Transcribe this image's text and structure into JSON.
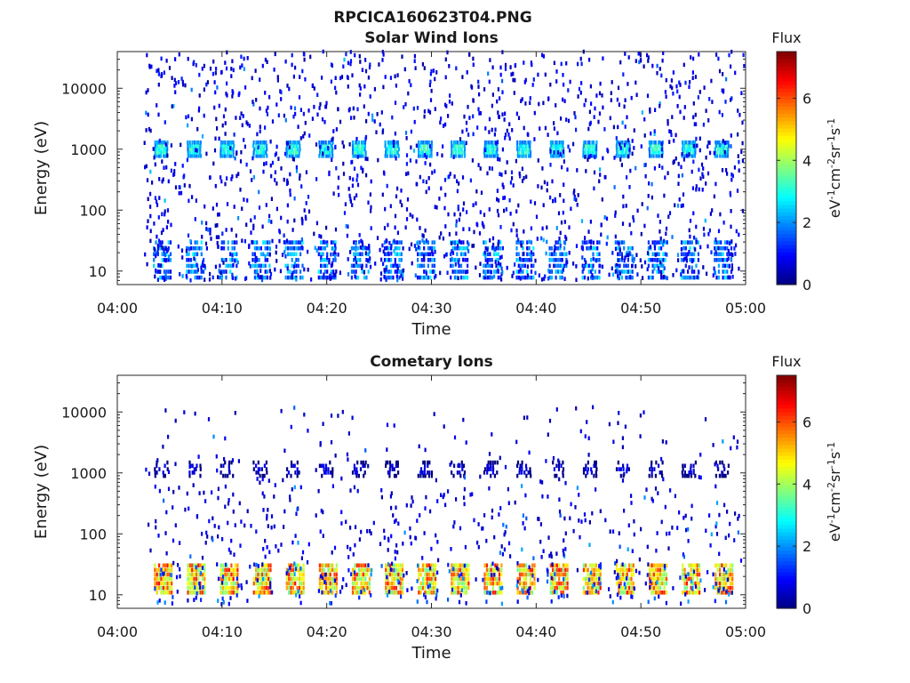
{
  "figure": {
    "title": "RPCICA160623T04.PNG"
  },
  "chart_data": [
    {
      "type": "heatmap",
      "title": "Solar Wind Ions",
      "xlabel": "Time",
      "ylabel": "Energy (eV)",
      "x_ticks": [
        "04:00",
        "04:10",
        "04:20",
        "04:30",
        "04:40",
        "04:50",
        "05:00"
      ],
      "x_range_minutes": [
        0,
        60
      ],
      "y_scale": "log",
      "y_range": [
        6,
        40000
      ],
      "y_ticks": [
        10,
        100,
        1000,
        10000
      ],
      "y_tick_labels": [
        "10",
        "100",
        "1000",
        "10000"
      ],
      "colorbar": {
        "label": "Flux",
        "units": "eV-1cm-2sr-1s-1",
        "range": [
          0,
          7.5
        ],
        "ticks": [
          0,
          2,
          4,
          6
        ],
        "colormap": "jet"
      },
      "features": [
        {
          "name": "periodic bursts near 1000 eV",
          "period_minutes": 3.15,
          "first_start_minutes": 3.5,
          "energy_center_eV": 1000,
          "value_range": [
            2.5,
            3.5
          ]
        },
        {
          "name": "periodic low-energy bands",
          "period_minutes": 3.15,
          "first_start_minutes": 3.4,
          "energy_range_eV": [
            7,
            33
          ],
          "value_range": [
            0.7,
            2.8
          ]
        },
        {
          "name": "scattered background",
          "energy_range_eV": [
            7,
            40000
          ],
          "time_range_minutes": [
            2.5,
            59.8
          ],
          "value_range": [
            0.3,
            1.2
          ]
        }
      ]
    },
    {
      "type": "heatmap",
      "title": "Cometary Ions",
      "xlabel": "Time",
      "ylabel": "Energy (eV)",
      "x_ticks": [
        "04:00",
        "04:10",
        "04:20",
        "04:30",
        "04:40",
        "04:50",
        "05:00"
      ],
      "x_range_minutes": [
        0,
        60
      ],
      "y_scale": "log",
      "y_range": [
        6,
        40000
      ],
      "y_ticks": [
        10,
        100,
        1000,
        10000
      ],
      "y_tick_labels": [
        "10",
        "100",
        "1000",
        "10000"
      ],
      "colorbar": {
        "label": "Flux",
        "units": "eV-1cm-2sr-1s-1",
        "range": [
          0,
          7.5
        ],
        "ticks": [
          0,
          2,
          4,
          6
        ],
        "colormap": "jet"
      },
      "features": [
        {
          "name": "periodic strong low-energy bursts",
          "period_minutes": 3.15,
          "first_start_minutes": 3.5,
          "energy_range_eV": [
            10,
            33
          ],
          "value_range": [
            3.5,
            6.5
          ]
        },
        {
          "name": "periodic weak bursts near 1000 eV",
          "period_minutes": 3.15,
          "first_start_minutes": 3.5,
          "energy_center_eV": 1150,
          "value_range": [
            0.3,
            1.0
          ]
        },
        {
          "name": "scattered background",
          "energy_range_eV": [
            7,
            12000
          ],
          "time_range_minutes": [
            2.5,
            59.8
          ],
          "value_range": [
            0.3,
            1.0
          ]
        }
      ]
    }
  ]
}
